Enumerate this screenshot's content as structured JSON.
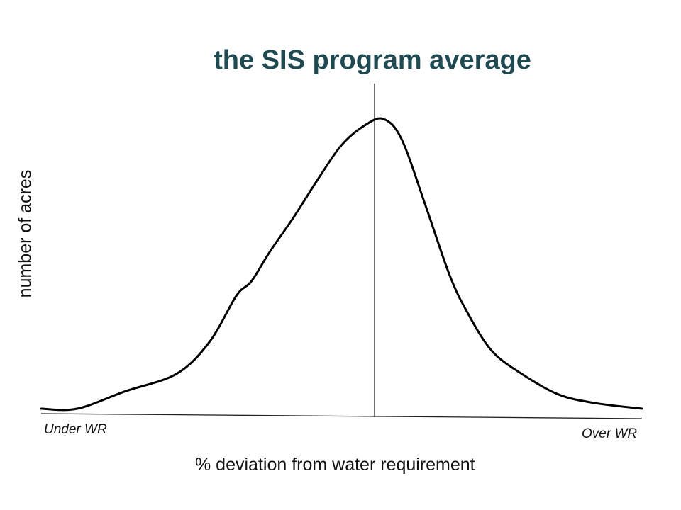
{
  "chart_data": {
    "type": "line",
    "title": "the SIS program average",
    "xlabel": "% deviation from water requirement",
    "ylabel": "number of acres",
    "x_end_labels": {
      "left": "Under WR",
      "right": "Over WR"
    },
    "average_marker": {
      "position": "vertical line near peak"
    },
    "grid": false,
    "series": [
      {
        "values": [
          [
            0.0,
            0.0
          ],
          [
            0.06,
            0.0
          ],
          [
            0.14,
            0.06
          ],
          [
            0.225,
            0.12
          ],
          [
            0.28,
            0.23
          ],
          [
            0.325,
            0.39
          ],
          [
            0.35,
            0.44
          ],
          [
            0.38,
            0.54
          ],
          [
            0.42,
            0.66
          ],
          [
            0.46,
            0.79
          ],
          [
            0.5,
            0.91
          ],
          [
            0.54,
            0.98
          ],
          [
            0.57,
            1.0
          ],
          [
            0.6,
            0.93
          ],
          [
            0.64,
            0.7
          ],
          [
            0.68,
            0.46
          ],
          [
            0.71,
            0.33
          ],
          [
            0.75,
            0.2
          ],
          [
            0.8,
            0.12
          ],
          [
            0.86,
            0.05
          ],
          [
            0.92,
            0.02
          ],
          [
            1.0,
            0.0
          ]
        ]
      }
    ]
  }
}
